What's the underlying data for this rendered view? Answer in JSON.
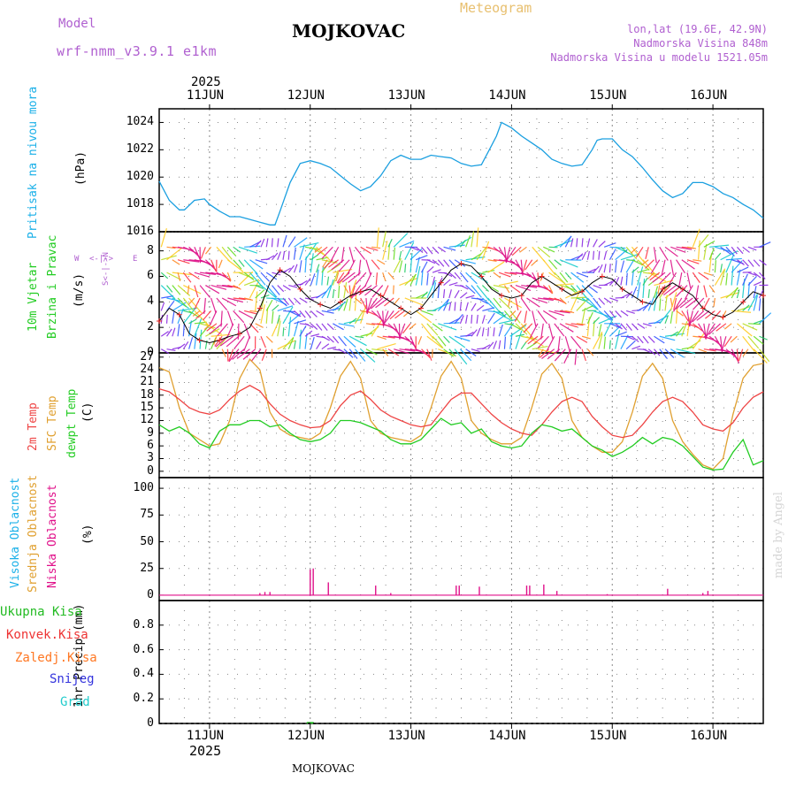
{
  "header": {
    "model_label": "Model",
    "model_name": "wrf-nmm_v3.9.1 e1km",
    "station": "MOJKOVAC",
    "meteogram": "Meteogram",
    "lonlat": "lon,lat (19.6E, 42.9N)",
    "elevation": "Nadmorska Visina 848m",
    "model_elevation": "Nadmorska Visina u modelu 1521.05m"
  },
  "footer": {
    "station": "MOJKOVAC",
    "credit": "made by Angel"
  },
  "colors": {
    "pressure": "#1a9fe0",
    "temp2m": "#ee4444",
    "sfc": "#e0a030",
    "dewpt": "#22cc22",
    "high_cloud": "#1ab0e8",
    "mid_cloud": "#e0a030",
    "low_cloud": "#e0108a",
    "ukupna": "#22bb22",
    "konvek": "#ee3333",
    "zaledj": "#ff7722",
    "snijeg": "#3333dd",
    "grad": "#22cccc"
  },
  "time_axis": {
    "year": "2025",
    "days": [
      "11JUN",
      "12JUN",
      "13JUN",
      "14JUN",
      "15JUN",
      "16JUN"
    ],
    "day_positions": [
      11,
      12,
      13,
      14,
      15,
      16
    ],
    "range": [
      10.5,
      16.5
    ]
  },
  "panels": {
    "pressure": {
      "ylabel_title": "Pritisak na nivou mora",
      "unit": "(hPa)",
      "ylim": [
        1016,
        1025
      ],
      "ticks": [
        "1016",
        "1018",
        "1020",
        "1022",
        "1024"
      ],
      "tick_values": [
        1016,
        1018,
        1020,
        1022,
        1024
      ]
    },
    "wind": {
      "ylabel_title_1": "10m Vjetar",
      "ylabel_title_2": "Brzina i Pravac",
      "unit": "(m/s)",
      "compass": {
        "w": "W",
        "e": "E",
        "n": "N",
        "s": "S",
        "arrow": "<-|->"
      },
      "ylim": [
        0,
        9.5
      ],
      "ticks": [
        "0",
        "2",
        "4",
        "6",
        "8"
      ],
      "tick_values": [
        0,
        2,
        4,
        6,
        8
      ]
    },
    "temperature": {
      "label_2m": "2m Temp",
      "label_sfc": "SFC Temp",
      "label_dewpt": "dewpt Temp",
      "unit": "(C)",
      "ylim": [
        -1.5,
        28
      ],
      "ticks": [
        "0",
        "3",
        "6",
        "9",
        "12",
        "15",
        "18",
        "21",
        "24",
        "27"
      ],
      "tick_values": [
        0,
        3,
        6,
        9,
        12,
        15,
        18,
        21,
        24,
        27
      ]
    },
    "clouds": {
      "label_high": "Visoka Oblacnost",
      "label_mid": "Srednja Oblacnost",
      "label_low": "Niska Oblacnost",
      "unit": "(%)",
      "ylim": [
        -5,
        110
      ],
      "ticks": [
        "0",
        "25",
        "50",
        "75",
        "100"
      ],
      "tick_values": [
        0,
        25,
        50,
        75,
        100
      ]
    },
    "precip": {
      "legend": [
        "Ukupna Kisa",
        "Konvek.Kisa",
        "Zaledj.Kisa",
        "Snijeg",
        "Grad"
      ],
      "ylabel": "1hr Precip (mm)",
      "ylim": [
        0,
        1.0
      ],
      "ticks": [
        "0",
        "0.2",
        "0.4",
        "0.6",
        "0.8"
      ],
      "tick_values": [
        0,
        0.2,
        0.4,
        0.6,
        0.8
      ]
    }
  },
  "chart_data": {
    "type": "line",
    "x_unit": "day of June 2025",
    "series": [
      {
        "name": "Pritisak na nivou mora",
        "x": [
          10.5,
          10.6,
          10.7,
          10.75,
          10.85,
          10.95,
          11.0,
          11.1,
          11.2,
          11.3,
          11.4,
          11.5,
          11.6,
          11.65,
          11.7,
          11.8,
          11.9,
          12.0,
          12.1,
          12.2,
          12.3,
          12.4,
          12.5,
          12.6,
          12.7,
          12.8,
          12.9,
          13.0,
          13.1,
          13.2,
          13.3,
          13.4,
          13.5,
          13.6,
          13.7,
          13.8,
          13.85,
          13.9,
          14.0,
          14.1,
          14.2,
          14.3,
          14.4,
          14.5,
          14.6,
          14.7,
          14.8,
          14.85,
          14.9,
          15.0,
          15.1,
          15.2,
          15.3,
          15.4,
          15.5,
          15.6,
          15.7,
          15.8,
          15.9,
          16.0,
          16.1,
          16.2,
          16.3,
          16.4,
          16.5
        ],
        "values": [
          1019.7,
          1018.3,
          1017.6,
          1017.6,
          1018.3,
          1018.4,
          1018.0,
          1017.5,
          1017.1,
          1017.1,
          1016.9,
          1016.7,
          1016.5,
          1016.5,
          1017.5,
          1019.6,
          1021.0,
          1021.2,
          1021.0,
          1020.7,
          1020.1,
          1019.5,
          1019.0,
          1019.3,
          1020.1,
          1021.2,
          1021.6,
          1021.3,
          1021.3,
          1021.6,
          1021.5,
          1021.4,
          1021.0,
          1020.8,
          1020.9,
          1022.3,
          1023.0,
          1024.0,
          1023.6,
          1023.0,
          1022.5,
          1022.0,
          1021.3,
          1021.0,
          1020.8,
          1020.9,
          1022.0,
          1022.7,
          1022.8,
          1022.8,
          1022.0,
          1021.5,
          1020.7,
          1019.8,
          1019.0,
          1018.5,
          1018.8,
          1019.6,
          1019.6,
          1019.3,
          1018.8,
          1018.5,
          1018.0,
          1017.6,
          1017.0
        ]
      },
      {
        "name": "10m Vjetar Brzina",
        "x": [
          10.5,
          10.6,
          10.7,
          10.8,
          10.9,
          11.0,
          11.1,
          11.2,
          11.3,
          11.4,
          11.5,
          11.6,
          11.7,
          11.8,
          11.9,
          12.0,
          12.1,
          12.2,
          12.3,
          12.4,
          12.5,
          12.6,
          12.7,
          12.8,
          12.9,
          13.0,
          13.1,
          13.2,
          13.3,
          13.4,
          13.5,
          13.6,
          13.7,
          13.8,
          13.9,
          14.0,
          14.1,
          14.2,
          14.3,
          14.4,
          14.5,
          14.6,
          14.7,
          14.8,
          14.9,
          15.0,
          15.1,
          15.2,
          15.3,
          15.4,
          15.5,
          15.6,
          15.7,
          15.8,
          15.9,
          16.0,
          16.1,
          16.2,
          16.3,
          16.4,
          16.5
        ],
        "values": [
          2.5,
          3.5,
          3.0,
          1.5,
          1.0,
          0.8,
          1.0,
          1.3,
          1.5,
          2.0,
          3.5,
          5.5,
          6.5,
          6.0,
          5.0,
          4.2,
          3.8,
          3.5,
          4.0,
          4.5,
          4.8,
          5.0,
          4.5,
          4.0,
          3.5,
          3.0,
          3.5,
          4.5,
          5.5,
          6.5,
          7.0,
          6.8,
          6.0,
          5.0,
          4.5,
          4.3,
          4.5,
          5.5,
          6.0,
          5.5,
          5.0,
          4.5,
          4.8,
          5.5,
          6.0,
          5.8,
          5.0,
          4.5,
          4.0,
          3.8,
          5.0,
          5.5,
          5.0,
          4.5,
          3.5,
          3.0,
          2.8,
          3.2,
          4.0,
          4.8,
          4.5
        ]
      },
      {
        "name": "2m Temp",
        "x": [
          10.5,
          10.6,
          10.7,
          10.8,
          10.9,
          11.0,
          11.1,
          11.2,
          11.3,
          11.4,
          11.5,
          11.6,
          11.7,
          11.8,
          11.9,
          12.0,
          12.1,
          12.2,
          12.3,
          12.4,
          12.5,
          12.6,
          12.7,
          12.8,
          12.9,
          13.0,
          13.1,
          13.2,
          13.3,
          13.4,
          13.5,
          13.6,
          13.7,
          13.8,
          13.9,
          14.0,
          14.1,
          14.2,
          14.3,
          14.4,
          14.5,
          14.6,
          14.7,
          14.8,
          14.9,
          15.0,
          15.1,
          15.2,
          15.3,
          15.4,
          15.5,
          15.6,
          15.7,
          15.8,
          15.9,
          16.0,
          16.1,
          16.2,
          16.3,
          16.4,
          16.5
        ],
        "values": [
          19.5,
          18.8,
          17.0,
          15.0,
          14.0,
          13.5,
          14.5,
          17.0,
          19.0,
          20.3,
          19.0,
          16.0,
          13.5,
          12.0,
          11.0,
          10.3,
          10.5,
          12.0,
          15.5,
          18.0,
          19.0,
          17.0,
          14.5,
          13.0,
          12.0,
          11.0,
          10.5,
          11.0,
          14.0,
          17.0,
          18.5,
          18.5,
          16.0,
          13.5,
          11.5,
          10.0,
          9.0,
          8.5,
          11.0,
          14.0,
          16.5,
          17.5,
          16.5,
          13.0,
          10.5,
          8.5,
          8.0,
          8.5,
          11.0,
          14.0,
          16.5,
          17.5,
          16.5,
          14.0,
          11.0,
          10.0,
          9.5,
          11.5,
          15.0,
          17.5,
          18.8
        ]
      },
      {
        "name": "SFC Temp",
        "x": [
          10.5,
          10.6,
          10.7,
          10.8,
          10.9,
          11.0,
          11.1,
          11.2,
          11.3,
          11.4,
          11.5,
          11.6,
          11.7,
          11.8,
          11.9,
          12.0,
          12.1,
          12.2,
          12.3,
          12.4,
          12.5,
          12.6,
          12.7,
          12.8,
          12.9,
          13.0,
          13.1,
          13.2,
          13.3,
          13.4,
          13.5,
          13.6,
          13.7,
          13.8,
          13.9,
          14.0,
          14.1,
          14.2,
          14.3,
          14.4,
          14.5,
          14.6,
          14.7,
          14.8,
          14.9,
          15.0,
          15.1,
          15.2,
          15.3,
          15.4,
          15.5,
          15.6,
          15.7,
          15.8,
          15.9,
          16.0,
          16.1,
          16.2,
          16.3,
          16.4,
          16.5
        ],
        "values": [
          24.5,
          23.5,
          15.0,
          9.0,
          7.5,
          6.0,
          6.5,
          12.0,
          22.0,
          26.5,
          24.0,
          14.0,
          10.0,
          8.5,
          8.0,
          7.5,
          9.0,
          15.0,
          22.5,
          26.0,
          22.0,
          12.0,
          9.0,
          8.0,
          7.5,
          7.0,
          8.5,
          15.0,
          22.5,
          26.0,
          22.0,
          12.0,
          9.0,
          7.5,
          6.5,
          6.5,
          8.0,
          15.0,
          23.0,
          25.5,
          22.0,
          12.0,
          8.0,
          6.0,
          4.5,
          4.5,
          7.0,
          14.0,
          22.5,
          25.5,
          22.0,
          12.0,
          7.0,
          4.0,
          1.5,
          0.5,
          3.0,
          13.5,
          22.0,
          25.0,
          25.5
        ]
      },
      {
        "name": "dewpt Temp",
        "x": [
          10.5,
          10.6,
          10.7,
          10.8,
          10.9,
          11.0,
          11.1,
          11.2,
          11.3,
          11.4,
          11.5,
          11.6,
          11.7,
          11.8,
          11.9,
          12.0,
          12.1,
          12.2,
          12.3,
          12.4,
          12.5,
          12.6,
          12.7,
          12.8,
          12.9,
          13.0,
          13.1,
          13.2,
          13.3,
          13.4,
          13.5,
          13.6,
          13.7,
          13.8,
          13.9,
          14.0,
          14.1,
          14.2,
          14.3,
          14.4,
          14.5,
          14.6,
          14.7,
          14.8,
          14.9,
          15.0,
          15.1,
          15.2,
          15.3,
          15.4,
          15.5,
          15.6,
          15.7,
          15.8,
          15.9,
          16.0,
          16.1,
          16.2,
          16.3,
          16.4,
          16.5
        ],
        "values": [
          11.0,
          9.5,
          10.5,
          9.0,
          6.5,
          5.5,
          9.5,
          11.0,
          11.0,
          12.0,
          12.0,
          10.5,
          11.0,
          9.0,
          7.5,
          7.0,
          7.5,
          9.0,
          12.0,
          12.0,
          11.5,
          10.5,
          9.5,
          7.5,
          6.5,
          6.5,
          7.5,
          10.0,
          12.5,
          11.0,
          11.5,
          9.0,
          10.0,
          7.0,
          6.0,
          5.5,
          6.0,
          9.0,
          11.0,
          10.5,
          9.5,
          10.0,
          8.0,
          6.0,
          5.0,
          3.5,
          4.5,
          6.0,
          8.0,
          6.5,
          8.0,
          7.5,
          6.0,
          3.5,
          1.0,
          0.3,
          0.5,
          4.5,
          7.5,
          1.5,
          2.5
        ]
      }
    ],
    "cloud_low_bars": {
      "x": [
        11.5,
        11.55,
        11.6,
        12.0,
        12.03,
        12.18,
        12.65,
        12.8,
        13.45,
        13.48,
        13.68,
        14.15,
        14.18,
        14.32,
        14.45,
        14.95,
        15.55,
        15.9,
        15.95
      ],
      "values": [
        2,
        3,
        3,
        24,
        25,
        12,
        9,
        2,
        9,
        9,
        8,
        9,
        9,
        10,
        4,
        1,
        6,
        2,
        4
      ]
    },
    "precip_bars": {
      "x": [
        12.0
      ],
      "values": [
        0.005
      ]
    }
  }
}
